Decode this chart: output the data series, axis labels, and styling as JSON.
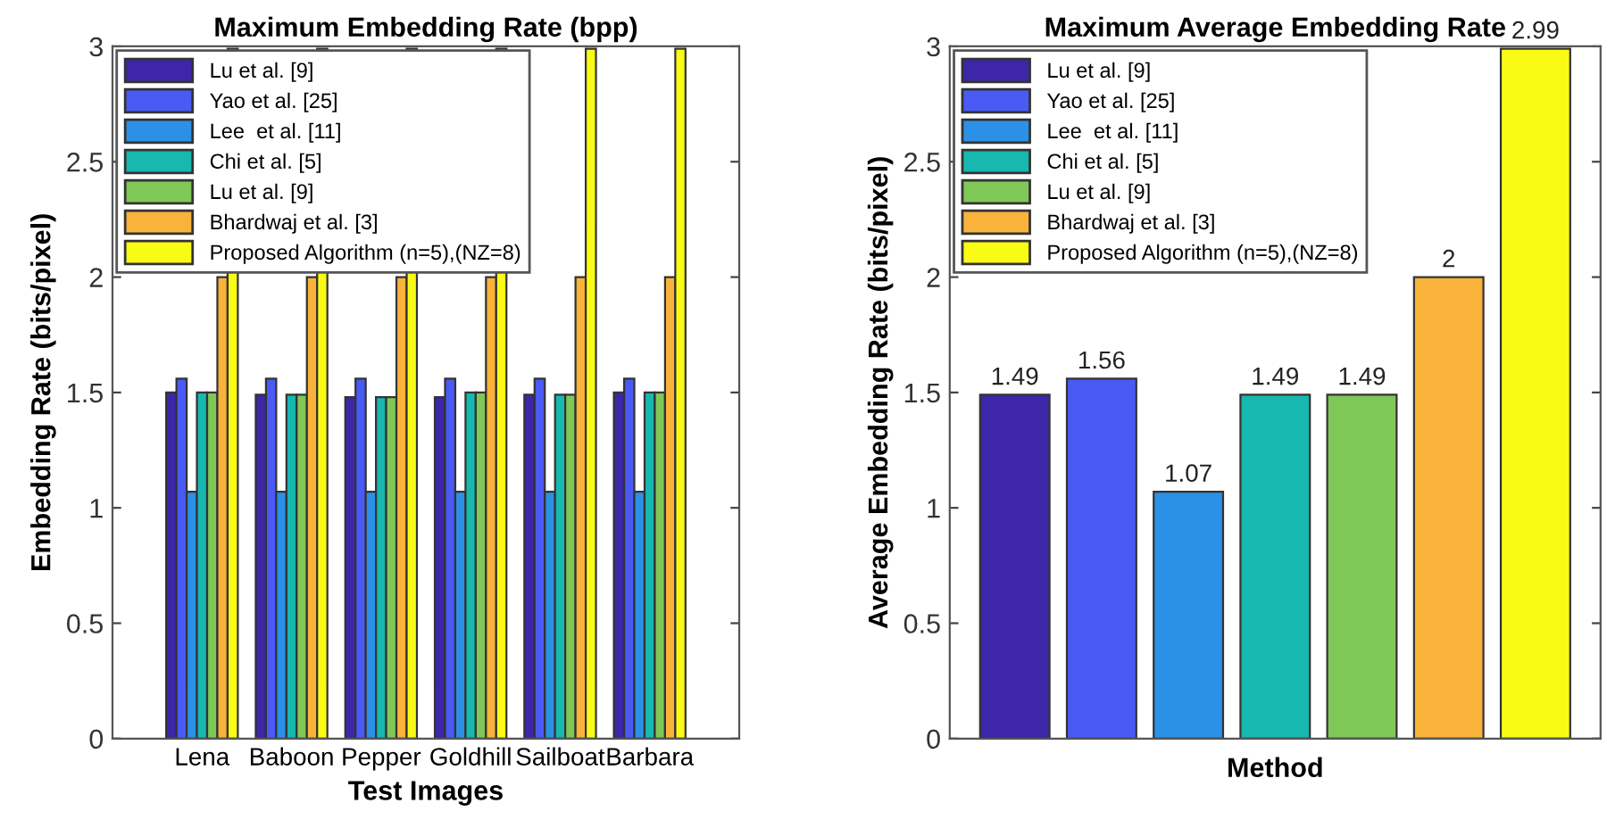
{
  "chart_data": [
    {
      "type": "bar",
      "title": "Maximum Embedding Rate (bpp)",
      "xlabel": "Test Images",
      "ylabel": "Embedding Rate (bits/pixel)",
      "categories": [
        "Lena",
        "Baboon",
        "Pepper",
        "Goldhill",
        "Sailboat",
        "Barbara"
      ],
      "series": [
        {
          "name": "Lu et al. [9]",
          "color": "#3e26a8",
          "values": [
            1.5,
            1.49,
            1.48,
            1.48,
            1.49,
            1.5
          ]
        },
        {
          "name": "Yao et al. [25]",
          "color": "#4a5af5",
          "values": [
            1.56,
            1.56,
            1.56,
            1.56,
            1.56,
            1.56
          ]
        },
        {
          "name": "Lee  et al. [11]",
          "color": "#2b91e6",
          "values": [
            1.07,
            1.07,
            1.07,
            1.07,
            1.07,
            1.07
          ]
        },
        {
          "name": "Chi et al. [5]",
          "color": "#17b8b0",
          "values": [
            1.5,
            1.49,
            1.48,
            1.5,
            1.49,
            1.5
          ]
        },
        {
          "name": "Lu et al. [9]",
          "color": "#7fc857",
          "values": [
            1.5,
            1.49,
            1.48,
            1.5,
            1.49,
            1.5
          ]
        },
        {
          "name": "Bhardwaj et al. [3]",
          "color": "#f9b33a",
          "values": [
            2,
            2,
            2,
            2,
            2,
            2
          ]
        },
        {
          "name": "Proposed Algorithm (n=5),(NZ=8)",
          "color": "#f9fb15",
          "values": [
            2.99,
            2.99,
            2.99,
            2.99,
            2.99,
            2.99
          ]
        }
      ],
      "ylim": [
        0,
        3
      ],
      "yticks": [
        0,
        0.5,
        1,
        1.5,
        2,
        2.5,
        3
      ],
      "legend": "top left",
      "grid": false
    },
    {
      "type": "bar",
      "title": "Maximum Average Embedding Rate",
      "xlabel": "Method",
      "ylabel": "Average Embedding Rate (bits/pixel)",
      "categories": [
        null,
        null,
        null,
        null,
        null,
        null,
        null
      ],
      "series": [
        {
          "name": "Lu et al. [9]",
          "color": "#3e26a8",
          "values": [
            1.49,
            null,
            null,
            null,
            null,
            null,
            null
          ]
        },
        {
          "name": "Yao et al. [25]",
          "color": "#4a5af5",
          "values": [
            null,
            1.56,
            null,
            null,
            null,
            null,
            null
          ]
        },
        {
          "name": "Lee  et al. [11]",
          "color": "#2b91e6",
          "values": [
            null,
            null,
            1.07,
            null,
            null,
            null,
            null
          ]
        },
        {
          "name": "Chi et al. [5]",
          "color": "#17b8b0",
          "values": [
            null,
            null,
            null,
            1.49,
            null,
            null,
            null
          ]
        },
        {
          "name": "Lu et al. [9]",
          "color": "#7fc857",
          "values": [
            null,
            null,
            null,
            null,
            1.49,
            null,
            null
          ]
        },
        {
          "name": "Bhardwaj et al. [3]",
          "color": "#f9b33a",
          "values": [
            null,
            null,
            null,
            null,
            null,
            2,
            null
          ]
        },
        {
          "name": "Proposed Algorithm (n=5),(NZ=8)",
          "color": "#f9fb15",
          "values": [
            null,
            null,
            null,
            null,
            null,
            null,
            2.99
          ]
        }
      ],
      "ylim": [
        0,
        3
      ],
      "yticks": [
        0,
        0.5,
        1,
        1.5,
        2,
        2.5,
        3
      ],
      "legend": "top left",
      "grid": false,
      "data_labels": true
    }
  ]
}
